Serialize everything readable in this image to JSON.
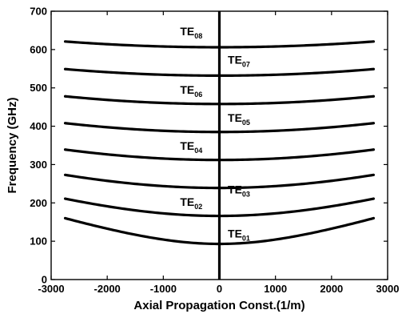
{
  "chart_data": {
    "type": "line",
    "title": "",
    "xlabel": "Axial Propagation Const.(1/m)",
    "ylabel": "Frequency (GHz)",
    "xlim": [
      -3000,
      3000
    ],
    "ylim": [
      0,
      700
    ],
    "xticks": [
      -3000,
      -2000,
      -1000,
      0,
      1000,
      2000,
      3000
    ],
    "yticks": [
      0,
      100,
      200,
      300,
      400,
      500,
      600,
      700
    ],
    "xtick_labels": [
      "-3000",
      "-2000",
      "-1000",
      "0",
      "1000",
      "2000",
      "3000"
    ],
    "ytick_labels": [
      "0",
      "100",
      "200",
      "300",
      "400",
      "500",
      "600",
      "700"
    ],
    "grid": false,
    "vertical_line_x": 0,
    "x_range_of_curves": [
      -2750,
      2750
    ],
    "series": [
      {
        "label_main": "TE",
        "label_sub": "01",
        "cutoff": 93,
        "edge_value": 160,
        "label_x": 150,
        "label_y": 110
      },
      {
        "label_main": "TE",
        "label_sub": "02",
        "cutoff": 166,
        "edge_value": 211,
        "label_x": -700,
        "label_y": 192
      },
      {
        "label_main": "TE",
        "label_sub": "03",
        "cutoff": 239,
        "edge_value": 273,
        "label_x": 150,
        "label_y": 225
      },
      {
        "label_main": "TE",
        "label_sub": "04",
        "cutoff": 312,
        "edge_value": 339,
        "label_x": -700,
        "label_y": 338
      },
      {
        "label_main": "TE",
        "label_sub": "05",
        "cutoff": 385,
        "edge_value": 408,
        "label_x": 150,
        "label_y": 412
      },
      {
        "label_main": "TE",
        "label_sub": "06",
        "cutoff": 458,
        "edge_value": 478,
        "label_x": -700,
        "label_y": 485
      },
      {
        "label_main": "TE",
        "label_sub": "07",
        "cutoff": 532,
        "edge_value": 549,
        "label_x": 150,
        "label_y": 563
      },
      {
        "label_main": "TE",
        "label_sub": "08",
        "cutoff": 606,
        "edge_value": 621,
        "label_x": -700,
        "label_y": 637
      }
    ]
  }
}
